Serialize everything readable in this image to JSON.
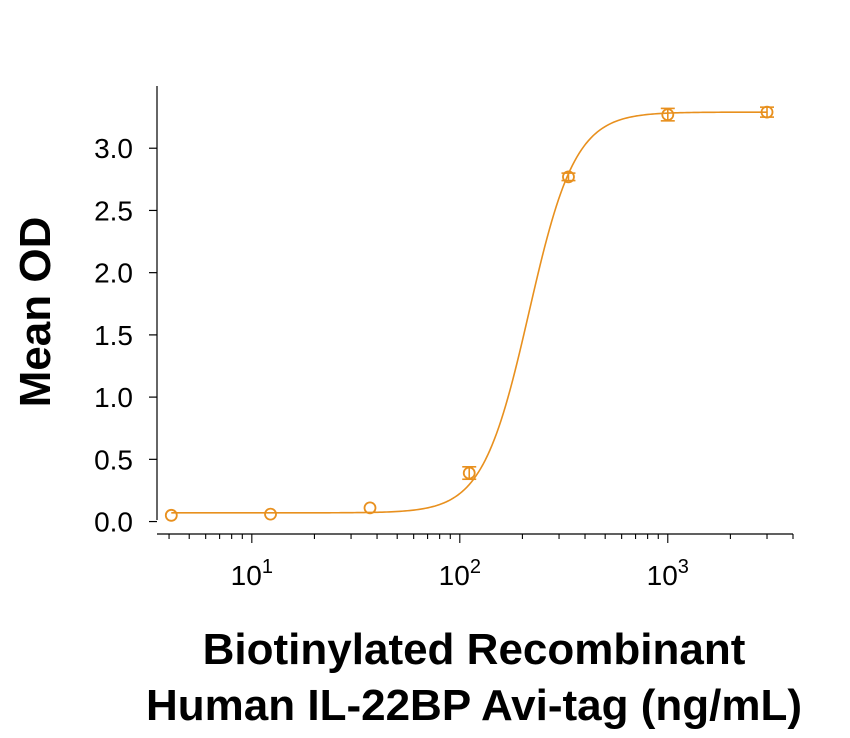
{
  "chart_data": {
    "type": "scatter",
    "title": "",
    "ylabel": "Mean OD",
    "xlabel_lines": [
      "Biotinylated Recombinant",
      "Human IL-22BP Avi-tag (ng/mL)"
    ],
    "xscale": "log",
    "xlim": [
      3.5,
      4000
    ],
    "ylim": [
      -0.1,
      3.5
    ],
    "yticks": [
      0.0,
      0.5,
      1.0,
      1.5,
      2.0,
      2.5,
      3.0
    ],
    "ytick_labels": [
      "0.0",
      "0.5",
      "1.0",
      "1.5",
      "2.0",
      "2.5",
      "3.0"
    ],
    "xticks": [
      {
        "value": 10,
        "base": "10",
        "exp": "1"
      },
      {
        "value": 100,
        "base": "10",
        "exp": "2"
      },
      {
        "value": 1000,
        "base": "10",
        "exp": "3"
      }
    ],
    "series": [
      {
        "color": "#E8901E",
        "points": [
          {
            "x": 4.1,
            "y": 0.05,
            "err": 0.0
          },
          {
            "x": 12.3,
            "y": 0.06,
            "err": 0.0
          },
          {
            "x": 37.0,
            "y": 0.11,
            "err": 0.0
          },
          {
            "x": 111.0,
            "y": 0.39,
            "err": 0.05
          },
          {
            "x": 333.0,
            "y": 2.77,
            "err": 0.03
          },
          {
            "x": 1000.0,
            "y": 3.27,
            "err": 0.05
          },
          {
            "x": 3000.0,
            "y": 3.29,
            "err": 0.04
          }
        ],
        "fit_4pl": {
          "bottom": 0.07,
          "top": 3.29,
          "ec50": 215,
          "hill": 3.9
        }
      }
    ],
    "grid": false,
    "legend": "none"
  }
}
